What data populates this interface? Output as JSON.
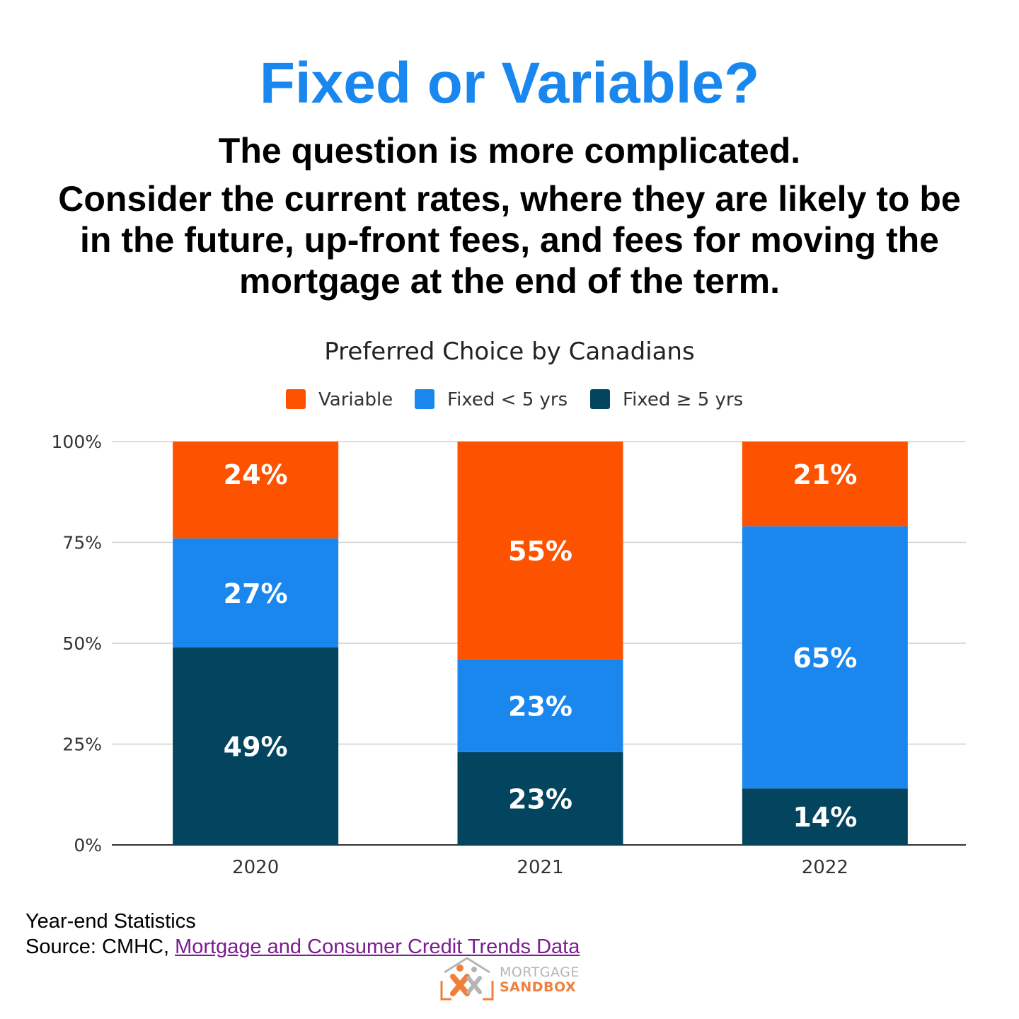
{
  "header": {
    "title": "Fixed or Variable?",
    "subtitle": "The question is more complicated.",
    "body": "Consider the current rates, where they are likely to be in the future, up-front fees, and fees for moving the mortgage at the end of the term."
  },
  "colors": {
    "title": "#1a87ef",
    "variable": "#fd5200",
    "fixed_lt5": "#1a87ef",
    "fixed_ge5": "#03445f"
  },
  "chart_data": {
    "type": "bar",
    "stacked": true,
    "title": "Preferred Choice by Canadians",
    "xlabel": "",
    "ylabel": "",
    "categories": [
      "2020",
      "2021",
      "2022"
    ],
    "ylim": [
      0,
      100
    ],
    "yticks": [
      "0%",
      "25%",
      "50%",
      "75%",
      "100%"
    ],
    "grid": true,
    "legend_position": "top",
    "series": [
      {
        "name": "Fixed ≥ 5 yrs",
        "color": "#03445f",
        "values": [
          49,
          23,
          14
        ],
        "labels": [
          "49%",
          "23%",
          "14%"
        ]
      },
      {
        "name": "Fixed  < 5 yrs",
        "color": "#1a87ef",
        "values": [
          27,
          23,
          65
        ],
        "labels": [
          "27%",
          "23%",
          "65%"
        ]
      },
      {
        "name": "Variable",
        "color": "#fd5200",
        "values": [
          24,
          55,
          21
        ],
        "labels": [
          "24%",
          "55%",
          "21%"
        ]
      }
    ],
    "legend_order": [
      "Variable",
      "Fixed  < 5 yrs",
      "Fixed ≥ 5 yrs"
    ]
  },
  "footer": {
    "note": "Year-end Statistics",
    "source_prefix": "Source: CMHC, ",
    "source_link": "Mortgage and Consumer Credit Trends Data"
  },
  "logo": {
    "line1": "MORTGAGE",
    "line2": "SANDBOX",
    "colors": {
      "primary": "#f07f3c",
      "secondary": "#b5b5b5"
    }
  }
}
